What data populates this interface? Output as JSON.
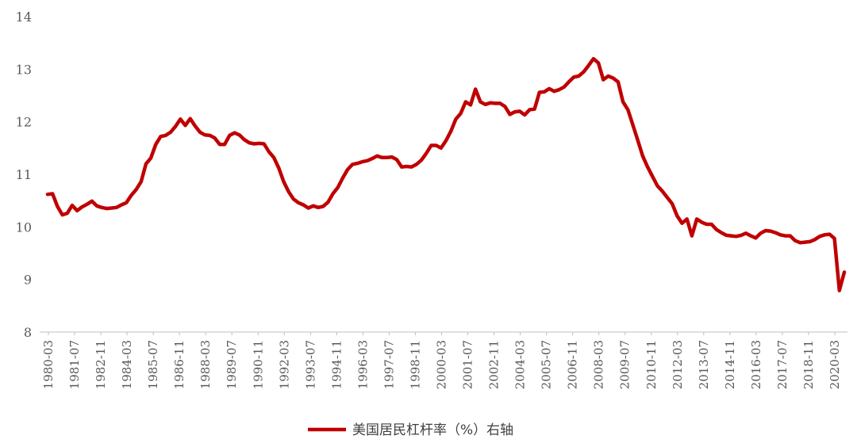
{
  "chart_data": {
    "type": "line",
    "title": "",
    "xlabel": "",
    "ylabel": "",
    "ylim": [
      8,
      14
    ],
    "yticks": [
      8,
      9,
      10,
      11,
      12,
      13,
      14
    ],
    "grid": false,
    "legend_position": "bottom",
    "line_color": "#C00000",
    "x_tick_labels": [
      "1980-03",
      "1981-07",
      "1982-11",
      "1984-03",
      "1985-07",
      "1986-11",
      "1988-03",
      "1989-07",
      "1990-11",
      "1992-03",
      "1993-07",
      "1994-11",
      "1996-03",
      "1997-07",
      "1998-11",
      "2000-03",
      "2001-07",
      "2002-11",
      "2004-03",
      "2005-07",
      "2006-11",
      "2008-03",
      "2009-07",
      "2010-11",
      "2012-03",
      "2013-07",
      "2014-11",
      "2016-03",
      "2017-07",
      "2018-11",
      "2020-03"
    ],
    "series": [
      {
        "name": "美国居民杠杆率（%）右轴",
        "x": [
          1980.17,
          1980.42,
          1980.67,
          1980.92,
          1981.17,
          1981.42,
          1981.67,
          1981.92,
          1982.17,
          1982.42,
          1982.67,
          1982.92,
          1983.17,
          1983.42,
          1983.67,
          1983.92,
          1984.17,
          1984.42,
          1984.67,
          1984.92,
          1985.17,
          1985.42,
          1985.67,
          1985.92,
          1986.17,
          1986.42,
          1986.67,
          1986.92,
          1987.17,
          1987.42,
          1987.67,
          1987.92,
          1988.17,
          1988.42,
          1988.67,
          1988.92,
          1989.17,
          1989.42,
          1989.67,
          1989.92,
          1990.17,
          1990.42,
          1990.67,
          1990.92,
          1991.17,
          1991.42,
          1991.67,
          1991.92,
          1992.17,
          1992.42,
          1992.67,
          1992.92,
          1993.17,
          1993.42,
          1993.67,
          1993.92,
          1994.17,
          1994.42,
          1994.67,
          1994.92,
          1995.17,
          1995.42,
          1995.67,
          1995.92,
          1996.17,
          1996.42,
          1996.67,
          1996.92,
          1997.17,
          1997.42,
          1997.67,
          1997.92,
          1998.17,
          1998.42,
          1998.67,
          1998.92,
          1999.17,
          1999.42,
          1999.67,
          1999.92,
          2000.17,
          2000.42,
          2000.67,
          2000.92,
          2001.17,
          2001.42,
          2001.67,
          2001.92,
          2002.17,
          2002.42,
          2002.67,
          2002.92,
          2003.17,
          2003.42,
          2003.67,
          2003.92,
          2004.17,
          2004.42,
          2004.67,
          2004.92,
          2005.17,
          2005.42,
          2005.67,
          2005.92,
          2006.17,
          2006.42,
          2006.67,
          2006.92,
          2007.17,
          2007.42,
          2007.67,
          2007.92,
          2008.17,
          2008.42,
          2008.67,
          2008.92,
          2009.17,
          2009.42,
          2009.67,
          2009.92,
          2010.17,
          2010.42,
          2010.67,
          2010.92,
          2011.17,
          2011.42,
          2011.67,
          2011.92,
          2012.17,
          2012.42,
          2012.67,
          2012.92,
          2013.17,
          2013.42,
          2013.67,
          2013.92,
          2014.17,
          2014.42,
          2014.67,
          2014.92,
          2015.17,
          2015.42,
          2015.67,
          2015.92,
          2016.17,
          2016.42,
          2016.67,
          2016.92,
          2017.17,
          2017.42,
          2017.67,
          2017.92,
          2018.17,
          2018.42,
          2018.67,
          2018.92,
          2019.17,
          2019.42,
          2019.67,
          2019.92,
          2020.17,
          2020.42,
          2020.67
        ],
        "values": [
          10.62,
          10.63,
          10.39,
          10.23,
          10.26,
          10.41,
          10.31,
          10.38,
          10.43,
          10.49,
          10.4,
          10.37,
          10.35,
          10.36,
          10.37,
          10.42,
          10.46,
          10.6,
          10.71,
          10.86,
          11.2,
          11.31,
          11.57,
          11.72,
          11.74,
          11.8,
          11.91,
          12.05,
          11.93,
          12.06,
          11.92,
          11.8,
          11.75,
          11.74,
          11.69,
          11.57,
          11.57,
          11.74,
          11.79,
          11.75,
          11.66,
          11.6,
          11.58,
          11.59,
          11.58,
          11.43,
          11.32,
          11.12,
          10.86,
          10.67,
          10.53,
          10.46,
          10.42,
          10.36,
          10.4,
          10.37,
          10.39,
          10.47,
          10.63,
          10.75,
          10.93,
          11.09,
          11.19,
          11.21,
          11.24,
          11.26,
          11.3,
          11.35,
          11.32,
          11.32,
          11.33,
          11.28,
          11.14,
          11.15,
          11.14,
          11.19,
          11.27,
          11.4,
          11.55,
          11.55,
          11.5,
          11.64,
          11.82,
          12.05,
          12.16,
          12.38,
          12.32,
          12.62,
          12.38,
          12.33,
          12.36,
          12.35,
          12.35,
          12.29,
          12.14,
          12.19,
          12.2,
          12.13,
          12.23,
          12.24,
          12.56,
          12.57,
          12.63,
          12.58,
          12.61,
          12.66,
          12.76,
          12.85,
          12.87,
          12.95,
          13.07,
          13.2,
          13.12,
          12.8,
          12.87,
          12.83,
          12.76,
          12.38,
          12.23,
          11.94,
          11.65,
          11.35,
          11.14,
          10.96,
          10.78,
          10.68,
          10.56,
          10.44,
          10.21,
          10.07,
          10.15,
          9.83,
          10.15,
          10.09,
          10.05,
          10.05,
          9.95,
          9.89,
          9.84,
          9.83,
          9.82,
          9.84,
          9.88,
          9.83,
          9.79,
          9.88,
          9.93,
          9.92,
          9.89,
          9.85,
          9.83,
          9.83,
          9.74,
          9.7,
          9.71,
          9.72,
          9.76,
          9.82,
          9.85,
          9.86,
          9.78,
          8.79,
          9.14
        ]
      }
    ]
  }
}
